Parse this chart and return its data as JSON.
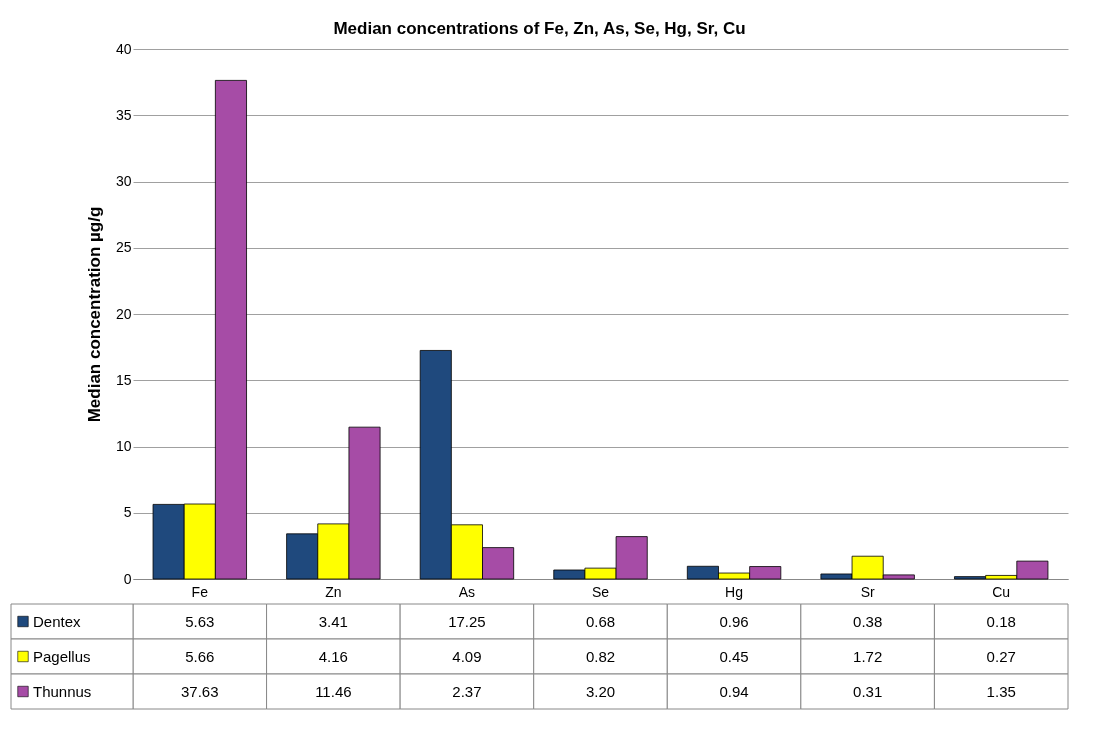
{
  "chart_data": {
    "type": "bar",
    "title": "Median concentrations of Fe, Zn, As, Se, Hg, Sr, Cu",
    "ylabel": "Median concentration µg/g",
    "categories": [
      "Fe",
      "Zn",
      "As",
      "Se",
      "Hg",
      "Sr",
      "Cu"
    ],
    "series": [
      {
        "name": "Dentex",
        "color": "#1f497d",
        "values": [
          5.63,
          3.41,
          17.25,
          0.68,
          0.96,
          0.38,
          0.18
        ],
        "value_labels": [
          "5.63",
          "3.41",
          "17.25",
          "0.68",
          "0.96",
          "0.38",
          "0.18"
        ]
      },
      {
        "name": "Pagellus",
        "color": "#ffff00",
        "values": [
          5.66,
          4.16,
          4.09,
          0.82,
          0.45,
          1.72,
          0.27
        ],
        "value_labels": [
          "5.66",
          "4.16",
          "4.09",
          "0.82",
          "0.45",
          "1.72",
          "0.27"
        ]
      },
      {
        "name": "Thunnus",
        "color": "#a64ca6",
        "values": [
          37.63,
          11.46,
          2.37,
          3.2,
          0.94,
          0.31,
          1.35
        ],
        "value_labels": [
          "37.63",
          "11.46",
          "2.37",
          "3.20",
          "0.94",
          "0.31",
          "1.35"
        ]
      }
    ],
    "ylim": [
      0,
      40
    ],
    "yticks": [
      0,
      5,
      10,
      15,
      20,
      25,
      30,
      35,
      40
    ],
    "grid": "y",
    "legend": "bottom"
  }
}
